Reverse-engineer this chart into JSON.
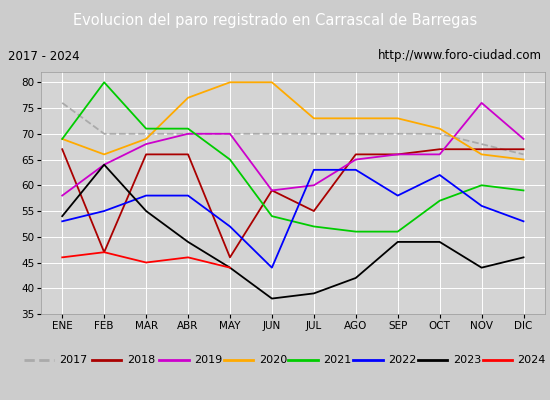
{
  "title": "Evolucion del paro registrado en Carrascal de Barregas",
  "subtitle_left": "2017 - 2024",
  "subtitle_right": "http://www.foro-ciudad.com",
  "months": [
    "ENE",
    "FEB",
    "MAR",
    "ABR",
    "MAY",
    "JUN",
    "JUL",
    "AGO",
    "SEP",
    "OCT",
    "NOV",
    "DIC"
  ],
  "series": {
    "2017": {
      "color": "#aaaaaa",
      "data": [
        76,
        70,
        70,
        70,
        70,
        70,
        70,
        70,
        70,
        70,
        68,
        66
      ],
      "dashed": true
    },
    "2018": {
      "color": "#aa0000",
      "data": [
        67,
        47,
        66,
        66,
        46,
        59,
        55,
        66,
        66,
        67,
        67,
        67
      ]
    },
    "2019": {
      "color": "#cc00cc",
      "data": [
        58,
        64,
        68,
        70,
        70,
        59,
        60,
        65,
        66,
        66,
        76,
        69
      ]
    },
    "2020": {
      "color": "#ffaa00",
      "data": [
        69,
        66,
        69,
        77,
        80,
        80,
        73,
        73,
        73,
        71,
        66,
        65
      ]
    },
    "2021": {
      "color": "#00cc00",
      "data": [
        69,
        80,
        71,
        71,
        65,
        54,
        52,
        51,
        51,
        57,
        60,
        59
      ]
    },
    "2022": {
      "color": "#0000ff",
      "data": [
        53,
        55,
        58,
        58,
        52,
        44,
        63,
        63,
        58,
        62,
        56,
        53
      ]
    },
    "2023": {
      "color": "#000000",
      "data": [
        54,
        64,
        55,
        49,
        44,
        38,
        39,
        42,
        49,
        49,
        44,
        46
      ]
    },
    "2024": {
      "color": "#ff0000",
      "data": [
        46,
        47,
        45,
        46,
        44,
        null,
        null,
        null,
        null,
        null,
        null,
        null
      ]
    }
  },
  "ylim": [
    35,
    82
  ],
  "yticks": [
    35,
    40,
    45,
    50,
    55,
    60,
    65,
    70,
    75,
    80
  ],
  "title_bg": "#4477cc",
  "title_color": "white",
  "subtitle_bg": "white",
  "grid_color": "white",
  "plot_bg": "#d4d4d4"
}
